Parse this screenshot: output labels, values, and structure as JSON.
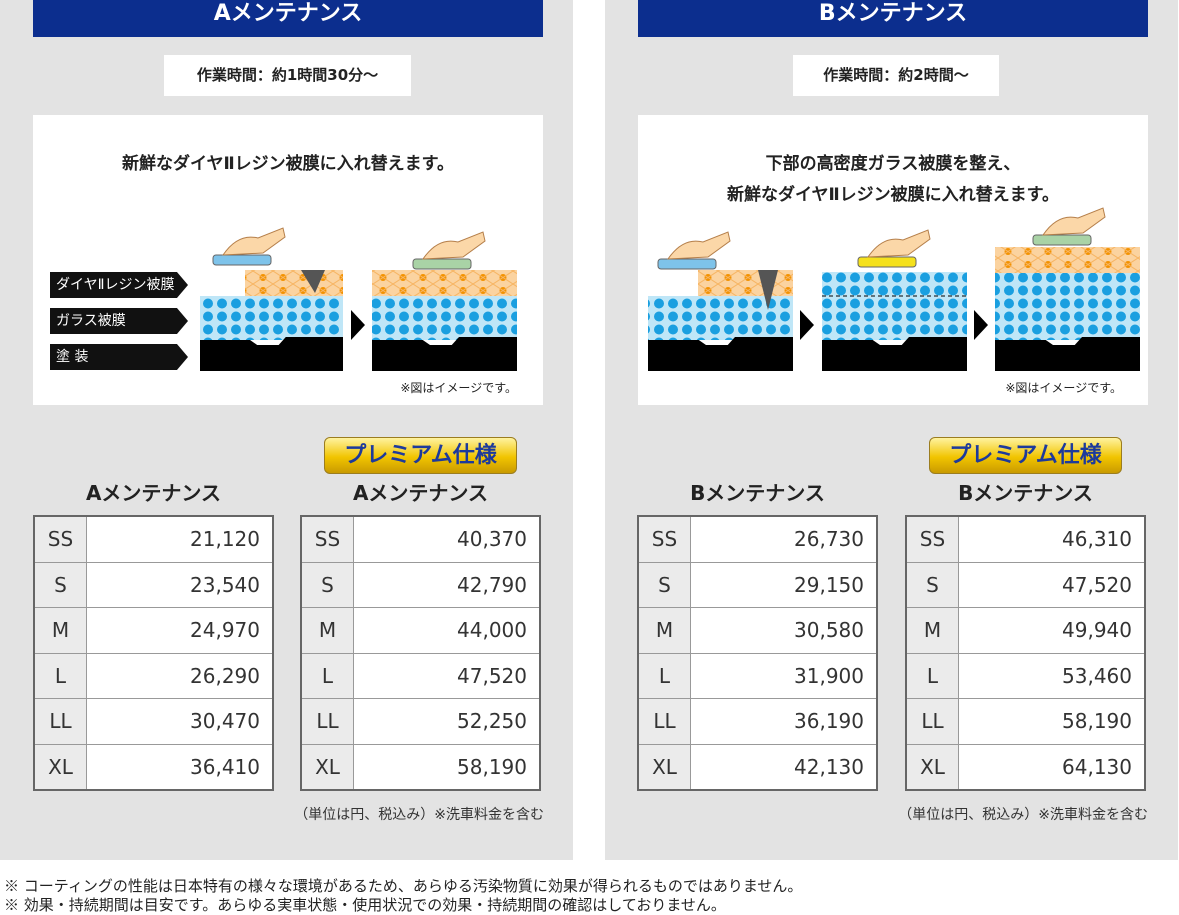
{
  "panels": [
    {
      "title": "Aメンテナンス",
      "work_time": "作業時間：約1時間30分～",
      "description": [
        "新鮮なダイヤⅡレジン被膜に入れ替えます。"
      ],
      "layer_labels": [
        "ダイヤⅡレジン被膜",
        "ガラス被膜",
        "塗 装"
      ],
      "image_note": "※図はイメージです。",
      "tables": [
        {
          "title": "Aメンテナンス",
          "rows": [
            [
              "SS",
              "21,120"
            ],
            [
              "S",
              "23,540"
            ],
            [
              "M",
              "24,970"
            ],
            [
              "L",
              "26,290"
            ],
            [
              "LL",
              "30,470"
            ],
            [
              "XL",
              "36,410"
            ]
          ]
        },
        {
          "badge": "プレミアム仕様",
          "title": "Aメンテナンス",
          "rows": [
            [
              "SS",
              "40,370"
            ],
            [
              "S",
              "42,790"
            ],
            [
              "M",
              "44,000"
            ],
            [
              "L",
              "47,520"
            ],
            [
              "LL",
              "52,250"
            ],
            [
              "XL",
              "58,190"
            ]
          ]
        }
      ],
      "unit_note": "（単位は円、税込み）※洗車料金を含む"
    },
    {
      "title": "Bメンテナンス",
      "work_time": "作業時間：約2時間～",
      "description": [
        "下部の高密度ガラス被膜を整え、",
        "新鮮なダイヤⅡレジン被膜に入れ替えます。"
      ],
      "image_note": "※図はイメージです。",
      "tables": [
        {
          "title": "Bメンテナンス",
          "rows": [
            [
              "SS",
              "26,730"
            ],
            [
              "S",
              "29,150"
            ],
            [
              "M",
              "30,580"
            ],
            [
              "L",
              "31,900"
            ],
            [
              "LL",
              "36,190"
            ],
            [
              "XL",
              "42,130"
            ]
          ]
        },
        {
          "badge": "プレミアム仕様",
          "title": "Bメンテナンス",
          "rows": [
            [
              "SS",
              "46,310"
            ],
            [
              "S",
              "47,520"
            ],
            [
              "M",
              "49,940"
            ],
            [
              "L",
              "53,460"
            ],
            [
              "LL",
              "58,190"
            ],
            [
              "XL",
              "64,130"
            ]
          ]
        }
      ],
      "unit_note": "（単位は円、税込み）※洗車料金を含む"
    }
  ],
  "notes": [
    "※ コーティングの性能は日本特有の様々な環境があるため、あらゆる汚染物質に効果が得られるものではありません。",
    "※ 効果・持続期間は目安です。あらゆる実車状態・使用状況での効果・持続期間の確認はしておりません。"
  ]
}
